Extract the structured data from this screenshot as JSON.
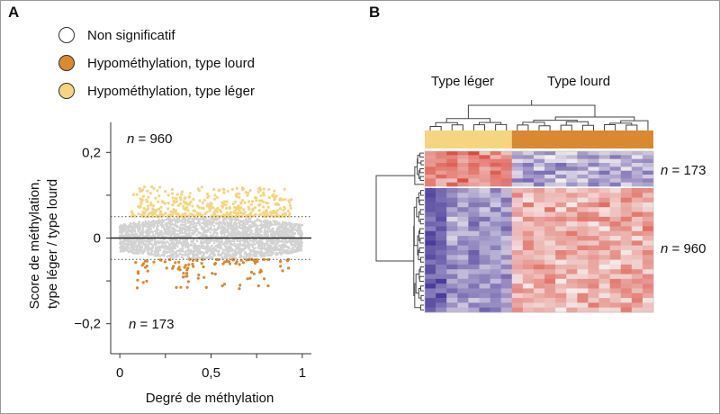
{
  "panels": {
    "a_label": "A",
    "b_label": "B"
  },
  "colors": {
    "nonsig": "#d2d2d2",
    "heavy": "#d9892f",
    "light": "#f5d57f",
    "heat_low": "#4a3c9a",
    "heat_mid": "#f5f0f2",
    "heat_high": "#d93a2a"
  },
  "legend": {
    "items": [
      {
        "label": "Non significatif",
        "color": "#ffffff"
      },
      {
        "label": "Hypométhylation, type lourd",
        "color": "#d9892f"
      },
      {
        "label": "Hypométhylation, type léger",
        "color": "#f5d57f"
      }
    ]
  },
  "chart_data": [
    {
      "type": "scatter",
      "panel": "A",
      "title": "",
      "xlabel": "Degré de méthylation",
      "ylabel_line1": "Score de méthylation,",
      "ylabel_line2": "type léger / type lourd",
      "xlim": [
        -0.05,
        1.05
      ],
      "ylim": [
        -0.27,
        0.27
      ],
      "x_ticks": [
        0,
        0.5,
        1
      ],
      "x_tick_labels": [
        "0",
        "0,5",
        "1"
      ],
      "y_ticks": [
        0.2,
        0,
        -0.2
      ],
      "y_tick_labels": [
        "0,2",
        "0",
        "−0,2"
      ],
      "thresholds": [
        0.05,
        -0.05
      ],
      "zero_line": 0,
      "annotations": [
        {
          "text_italic": "n",
          "text": " = 960",
          "x": 0.08,
          "y": 0.245
        },
        {
          "text_italic": "n",
          "text": " = 173",
          "x": 0.08,
          "y": -0.205
        }
      ],
      "series": [
        {
          "name": "Non significatif",
          "x_range": [
            0.0,
            1.0
          ],
          "y_range": [
            -0.05,
            0.05
          ]
        },
        {
          "name": "Hypométhylation, type léger",
          "count": 960,
          "x_range": [
            0.05,
            0.95
          ],
          "y_range": [
            0.05,
            0.12
          ]
        },
        {
          "name": "Hypométhylation, type lourd",
          "count": 173,
          "x_range": [
            0.05,
            0.95
          ],
          "y_range": [
            -0.12,
            -0.05
          ]
        }
      ]
    },
    {
      "type": "heatmap",
      "panel": "B",
      "column_groups": [
        {
          "label": "Type léger",
          "columns": 8
        },
        {
          "label": "Type lourd",
          "columns": 13
        }
      ],
      "row_groups": [
        {
          "label_italic": "n",
          "label": " = 173",
          "rows": 9
        },
        {
          "label_italic": "n",
          "label": " = 960",
          "rows": 26
        }
      ]
    }
  ]
}
